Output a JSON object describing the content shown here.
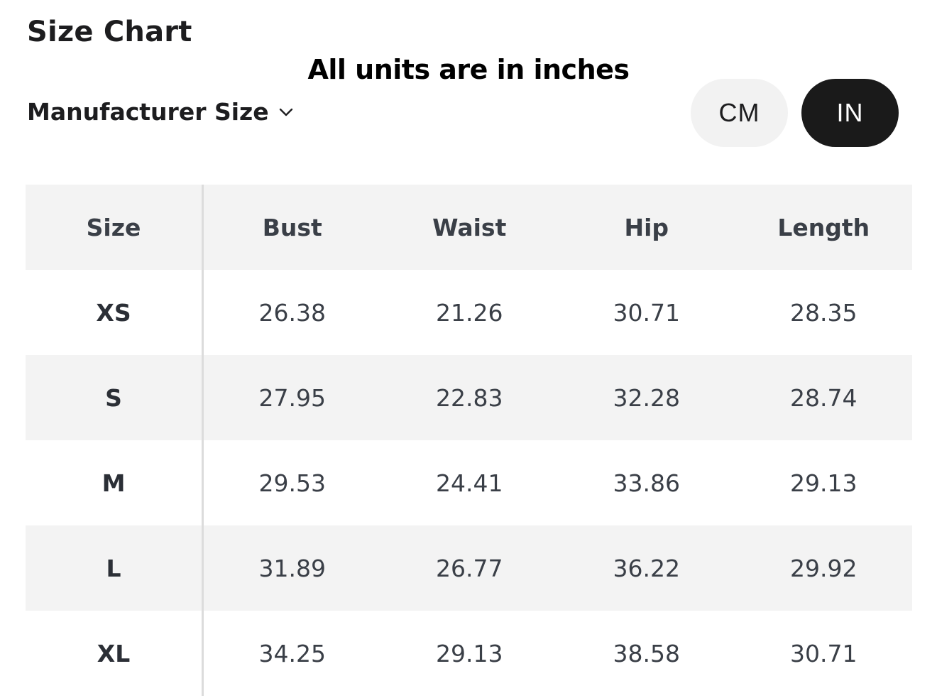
{
  "title": "Size Chart",
  "units_note": "All units are in inches",
  "size_selector": {
    "label": "Manufacturer Size",
    "icon": "chevron-down-icon"
  },
  "unit_toggle": {
    "cm_label": "CM",
    "in_label": "IN",
    "selected": "IN"
  },
  "colors": {
    "selected_bg": "#1a1a1a",
    "unselected_bg": "#f2f2f2",
    "row_shade": "#f3f3f3"
  },
  "table": {
    "headers": [
      "Size",
      "Bust",
      "Waist",
      "Hip",
      "Length"
    ],
    "rows": [
      [
        "XS",
        "26.38",
        "21.26",
        "30.71",
        "28.35"
      ],
      [
        "S",
        "27.95",
        "22.83",
        "32.28",
        "28.74"
      ],
      [
        "M",
        "29.53",
        "24.41",
        "33.86",
        "29.13"
      ],
      [
        "L",
        "31.89",
        "26.77",
        "36.22",
        "29.92"
      ],
      [
        "XL",
        "34.25",
        "29.13",
        "38.58",
        "30.71"
      ]
    ]
  }
}
